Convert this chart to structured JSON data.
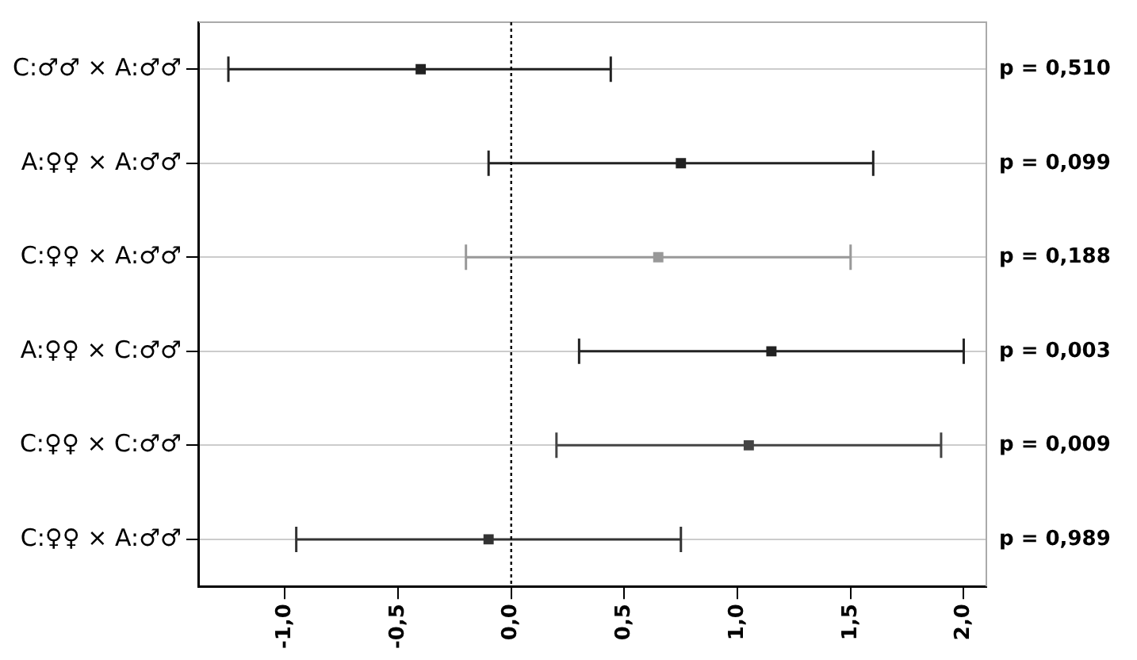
{
  "chart_data": {
    "type": "scatter",
    "orientation": "horizontal",
    "categories": [
      "C:♂♂ × A:♂♂",
      "A:♀♀ × A:♂♂",
      "C:♀♀ × A:♂♂",
      "A:♀♀ × C:♂♂",
      "C:♀♀ × C:♂♂",
      "C:♀♀ × A:♂♂"
    ],
    "values": [
      -0.4,
      0.75,
      0.65,
      1.15,
      1.05,
      -0.1
    ],
    "errors": [
      [
        -1.25,
        0.44
      ],
      [
        -0.1,
        1.6
      ],
      [
        -0.2,
        1.5
      ],
      [
        0.3,
        2.0
      ],
      [
        0.2,
        1.9
      ],
      [
        -0.95,
        0.75
      ]
    ],
    "colors": [
      "#222222",
      "#222222",
      "#999999",
      "#222222",
      "#444444",
      "#333333"
    ],
    "xlim": [
      -1.38,
      2.1
    ],
    "xticks": [
      {
        "value": -1,
        "label": "-1,0"
      },
      {
        "value": -0.5,
        "label": "-0,5"
      },
      {
        "value": 0,
        "label": "0,0"
      },
      {
        "value": 0.5,
        "label": "0,5"
      },
      {
        "value": 1,
        "label": "1,0"
      },
      {
        "value": 1.5,
        "label": "1,5"
      },
      {
        "value": 2,
        "label": "2,0"
      }
    ],
    "ref_lines": [
      {
        "axis": "x",
        "value": 0,
        "line_style": "dotted",
        "color": "#000000"
      }
    ],
    "annotations": [
      "p = 0,510",
      "p = 0,099",
      "p = 0,188",
      "p = 0,003",
      "p = 0,009",
      "p = 0,989"
    ],
    "grid": "y",
    "legend": false,
    "marker": "square"
  }
}
